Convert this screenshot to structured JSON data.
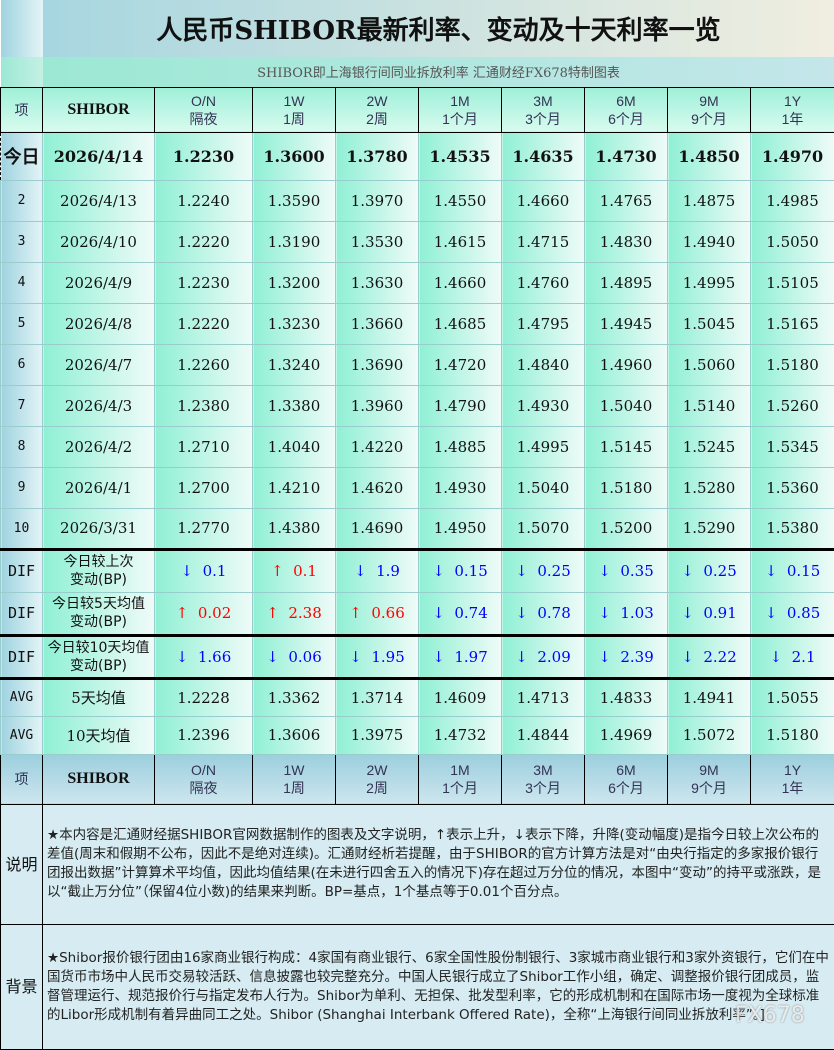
{
  "title": "人民币SHIBOR最新利率、变动及十天利率一览",
  "subtitle": "SHIBOR即上海银行间同业拆放利率   汇通财经FX678特制图表",
  "header": {
    "item": "项",
    "shibor": "SHIBOR",
    "cols": [
      [
        "O/N",
        "隔夜"
      ],
      [
        "1W",
        "1周"
      ],
      [
        "2W",
        "2周"
      ],
      [
        "1M",
        "1个月"
      ],
      [
        "3M",
        "3个月"
      ],
      [
        "6M",
        "6个月"
      ],
      [
        "9M",
        "9个月"
      ],
      [
        "1Y",
        "1年"
      ]
    ]
  },
  "today": {
    "label": "今日",
    "date": "2026/4/14",
    "values": [
      "1.2230",
      "1.3600",
      "1.3780",
      "1.4535",
      "1.4635",
      "1.4730",
      "1.4850",
      "1.4970"
    ]
  },
  "rows": [
    {
      "n": "2",
      "date": "2026/4/13",
      "values": [
        "1.2240",
        "1.3590",
        "1.3970",
        "1.4550",
        "1.4660",
        "1.4765",
        "1.4875",
        "1.4985"
      ]
    },
    {
      "n": "3",
      "date": "2026/4/10",
      "values": [
        "1.2220",
        "1.3190",
        "1.3530",
        "1.4615",
        "1.4715",
        "1.4830",
        "1.4940",
        "1.5050"
      ]
    },
    {
      "n": "4",
      "date": "2026/4/9",
      "values": [
        "1.2230",
        "1.3200",
        "1.3630",
        "1.4660",
        "1.4760",
        "1.4895",
        "1.4995",
        "1.5105"
      ]
    },
    {
      "n": "5",
      "date": "2026/4/8",
      "values": [
        "1.2220",
        "1.3230",
        "1.3660",
        "1.4685",
        "1.4795",
        "1.4945",
        "1.5045",
        "1.5165"
      ]
    },
    {
      "n": "6",
      "date": "2026/4/7",
      "values": [
        "1.2260",
        "1.3240",
        "1.3690",
        "1.4720",
        "1.4840",
        "1.4960",
        "1.5060",
        "1.5180"
      ]
    },
    {
      "n": "7",
      "date": "2026/4/3",
      "values": [
        "1.2380",
        "1.3380",
        "1.3960",
        "1.4790",
        "1.4930",
        "1.5040",
        "1.5140",
        "1.5260"
      ]
    },
    {
      "n": "8",
      "date": "2026/4/2",
      "values": [
        "1.2710",
        "1.4040",
        "1.4220",
        "1.4885",
        "1.4995",
        "1.5145",
        "1.5245",
        "1.5345"
      ]
    },
    {
      "n": "9",
      "date": "2026/4/1",
      "values": [
        "1.2700",
        "1.4210",
        "1.4620",
        "1.4930",
        "1.5040",
        "1.5180",
        "1.5280",
        "1.5360"
      ]
    },
    {
      "n": "10",
      "date": "2026/3/31",
      "values": [
        "1.2770",
        "1.4380",
        "1.4690",
        "1.4950",
        "1.5070",
        "1.5200",
        "1.5290",
        "1.5380"
      ]
    }
  ],
  "dif": [
    {
      "tag": "DIF",
      "label": [
        "今日较上次",
        "变动(BP)"
      ],
      "values": [
        [
          "dn",
          "0.1"
        ],
        [
          "up",
          "0.1"
        ],
        [
          "dn",
          "1.9"
        ],
        [
          "dn",
          "0.15"
        ],
        [
          "dn",
          "0.25"
        ],
        [
          "dn",
          "0.35"
        ],
        [
          "dn",
          "0.25"
        ],
        [
          "dn",
          "0.15"
        ]
      ]
    },
    {
      "tag": "DIF",
      "label": [
        "今日较5天均值",
        "变动(BP)"
      ],
      "values": [
        [
          "up",
          "0.02"
        ],
        [
          "up",
          "2.38"
        ],
        [
          "up",
          "0.66"
        ],
        [
          "dn",
          "0.74"
        ],
        [
          "dn",
          "0.78"
        ],
        [
          "dn",
          "1.03"
        ],
        [
          "dn",
          "0.91"
        ],
        [
          "dn",
          "0.85"
        ]
      ]
    },
    {
      "tag": "DIF",
      "label": [
        "今日较10天均值",
        "变动(BP)"
      ],
      "values": [
        [
          "dn",
          "1.66"
        ],
        [
          "dn",
          "0.06"
        ],
        [
          "dn",
          "1.95"
        ],
        [
          "dn",
          "1.97"
        ],
        [
          "dn",
          "2.09"
        ],
        [
          "dn",
          "2.39"
        ],
        [
          "dn",
          "2.22"
        ],
        [
          "dn",
          "2.1"
        ]
      ]
    }
  ],
  "arrows": {
    "up": "↑",
    "dn": "↓"
  },
  "colors": {
    "up": "#ff0000",
    "dn": "#0000ff"
  },
  "avg": [
    {
      "tag": "AVG",
      "label": "5天均值",
      "values": [
        "1.2228",
        "1.3362",
        "1.3714",
        "1.4609",
        "1.4713",
        "1.4833",
        "1.4941",
        "1.5055"
      ]
    },
    {
      "tag": "AVG",
      "label": "10天均值",
      "values": [
        "1.2396",
        "1.3606",
        "1.3975",
        "1.4732",
        "1.4844",
        "1.4969",
        "1.5072",
        "1.5180"
      ]
    }
  ],
  "notes": [
    {
      "label": "说明",
      "text": "★本内容是汇通财经据SHIBOR官网数据制作的图表及文字说明，↑表示上升，↓表示下降，升降(变动幅度)是指今日较上次公布的差值(周末和假期不公布，因此不是绝对连续)。汇通财经析若提醒，由于SHIBOR的官方计算方法是对“由央行指定的多家报价银行团报出数据”计算算术平均值，因此均值结果(在未进行四舍五入的情况下)存在超过万分位的情况，本图中“变动”的持平或涨跌，是以“截止万分位”（保留4位小数)的结果来判断。BP=基点，1个基点等于0.01个百分点。"
    },
    {
      "label": "背景",
      "text": "★Shibor报价银行团由16家商业银行构成：4家国有商业银行、6家全国性股份制银行、3家城市商业银行和3家外资银行，它们在中国货币市场中人民币交易较活跃、信息披露也较完整充分。中国人民银行成立了Shibor工作小组，确定、调整报价银行团成员，监督管理运行、规范报价行与指定发布人行为。Shibor为单利、无担保、批发型利率，它的形成机制和在国际市场一度视为全球标准的Libor形成机制有着异曲同工之处。Shibor (Shanghai Interbank Offered Rate)，全称“上海银行间同业拆放利率”。]"
    }
  ],
  "watermark": "FX678"
}
